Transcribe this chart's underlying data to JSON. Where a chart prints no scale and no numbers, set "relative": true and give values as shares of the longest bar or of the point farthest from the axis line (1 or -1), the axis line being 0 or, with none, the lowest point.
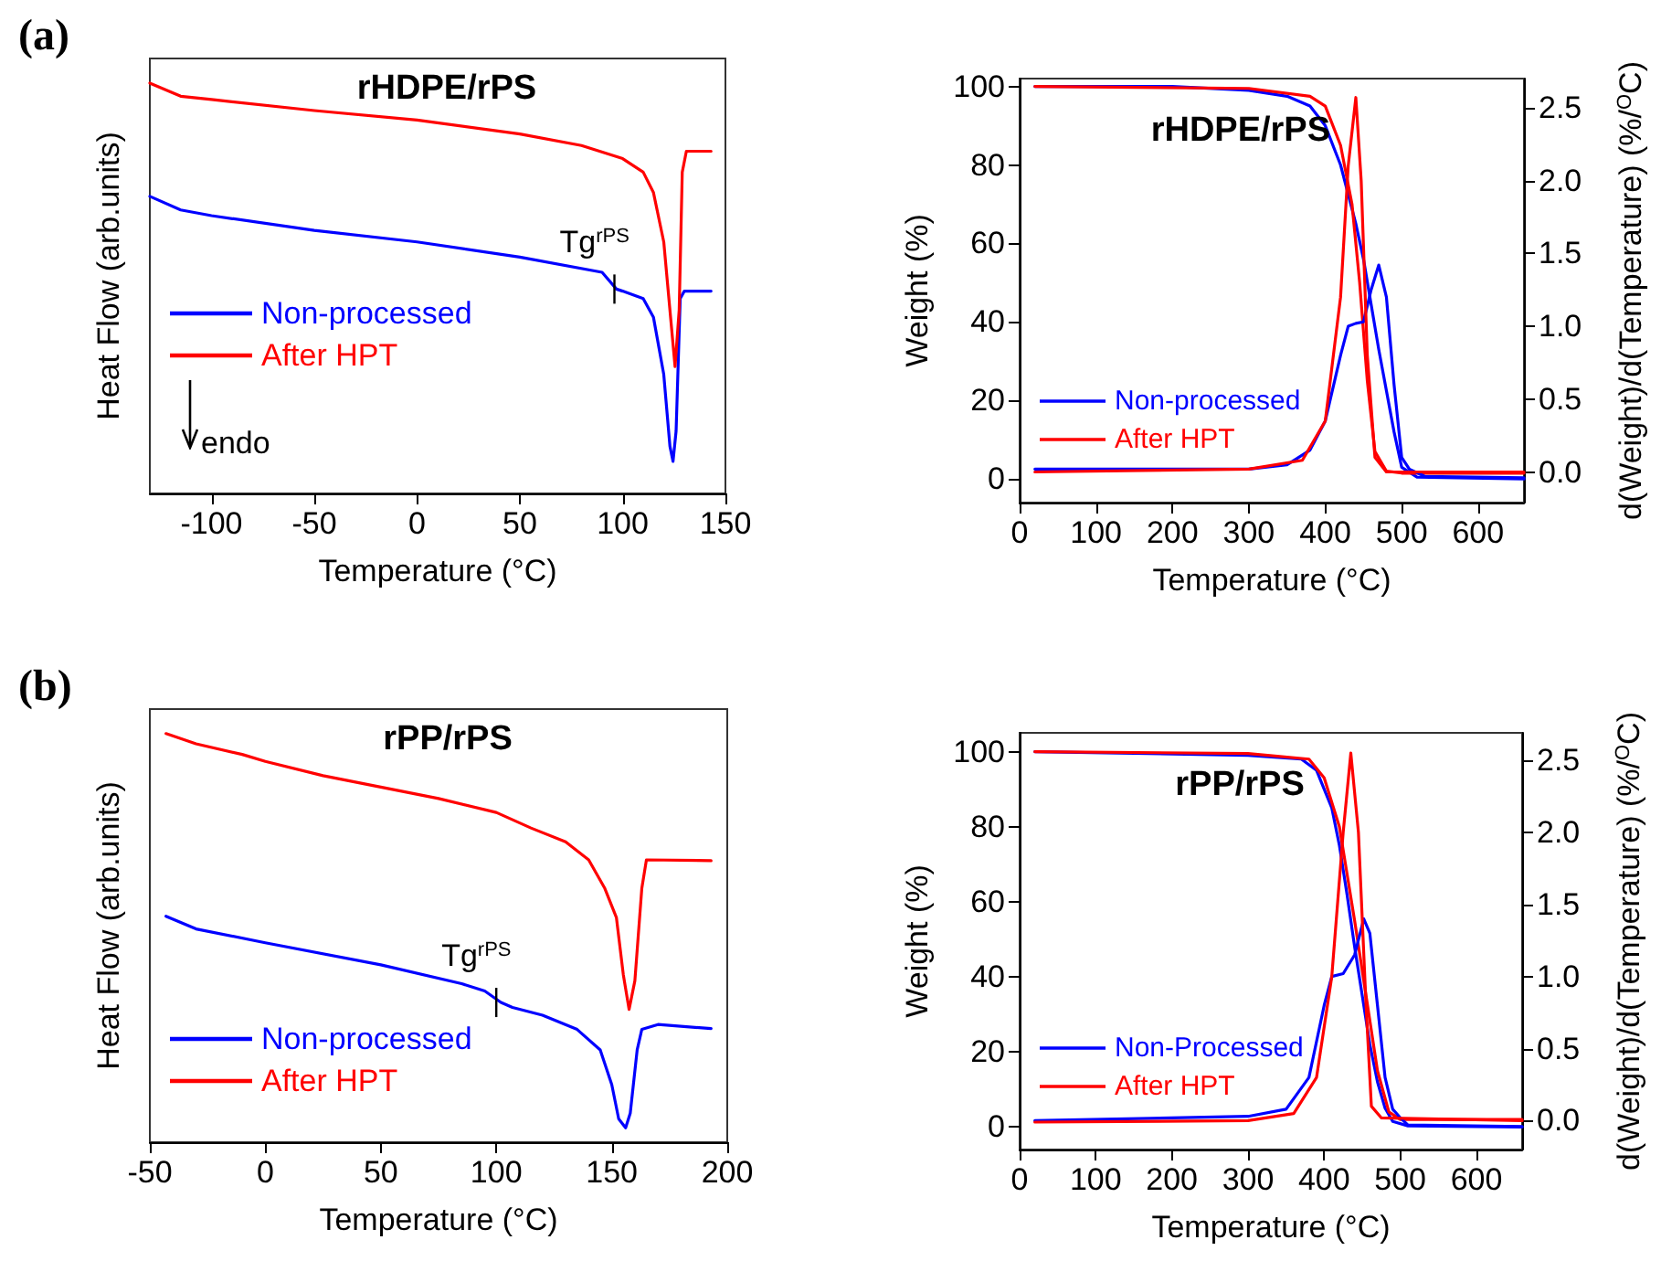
{
  "chart_data": [
    {
      "type": "line",
      "title": "rHDPE/rPS",
      "xlabel": "Temperature (°C)",
      "ylabel": "Heat Flow (arb.units)",
      "relative": true,
      "tick_labels": "x",
      "marker": "none",
      "legend": "bottom left",
      "xlim": [
        -130,
        150
      ],
      "xticks": [
        -100,
        -50,
        0,
        50,
        100,
        150
      ],
      "annotations": [
        "(a)",
        "endo",
        {
          "text": "Tg$^{rPS}$",
          "x": 96,
          "y": 0.498
        }
      ],
      "series": [
        {
          "name": "Non-processed",
          "color": "#0000ff",
          "x": [
            -130,
            -115,
            -100,
            -50,
            0,
            50,
            90,
            97,
            100,
            110,
            115,
            120,
            123,
            124.5,
            126,
            128,
            130,
            143
          ],
          "values": [
            0.724,
            0.691,
            0.677,
            0.641,
            0.613,
            0.576,
            0.539,
            0.498,
            0.493,
            0.475,
            0.429,
            0.29,
            0.115,
            0.078,
            0.152,
            0.475,
            0.493,
            0.493
          ]
        },
        {
          "name": "After HPT",
          "color": "#ff0000",
          "x": [
            -130,
            -115,
            -100,
            -50,
            0,
            50,
            80,
            100,
            110,
            115,
            120,
            123,
            125.5,
            127.5,
            129,
            131,
            143
          ],
          "values": [
            1.0,
            0.968,
            0.96,
            0.933,
            0.91,
            0.876,
            0.848,
            0.816,
            0.783,
            0.733,
            0.613,
            0.447,
            0.309,
            0.447,
            0.783,
            0.834,
            0.834
          ]
        }
      ]
    },
    {
      "type": "line",
      "title": "rHDPE/rPS",
      "xlabel": "Temperature (°C)",
      "ylabel": "Weight (%)",
      "y2label": "d(Weight)/d(Temperature) (%/$^{O}$C)",
      "marker": "none",
      "legend": "bottom left",
      "xlim": [
        0,
        660
      ],
      "xticks": [
        0,
        100,
        200,
        300,
        400,
        500,
        600
      ],
      "ylim": [
        -6,
        102
      ],
      "yticks": [
        0,
        20,
        40,
        60,
        80,
        100
      ],
      "y2lim": [
        -0.21,
        2.7
      ],
      "y2ticks": [
        {
          "value": 0,
          "label": "0.0"
        },
        0.5,
        {
          "value": 1,
          "label": "1.0"
        },
        1.5,
        {
          "value": 2,
          "label": "2.0"
        },
        2.5
      ],
      "series": [
        {
          "name": "Non-processed",
          "color": "#0000ff",
          "x": [
            20,
            200,
            300,
            350,
            380,
            400,
            420,
            440,
            450,
            470,
            490,
            500,
            520,
            660
          ],
          "values": [
            100,
            100,
            99,
            97.5,
            95,
            90,
            80,
            65,
            56,
            33,
            12,
            3,
            0.5,
            0
          ]
        },
        {
          "name": "After HPT",
          "color": "#ff0000",
          "x": [
            20,
            300,
            380,
            400,
            420,
            435,
            445,
            455,
            465,
            480,
            500,
            660
          ],
          "values": [
            100,
            99.5,
            97.5,
            95,
            85,
            70,
            50,
            25,
            7,
            2,
            1.5,
            1.5
          ]
        },
        {
          "color": "#0000ff",
          "axis": "y2",
          "x": [
            20,
            300,
            350,
            380,
            400,
            420,
            430,
            440,
            450,
            460,
            470,
            480,
            490,
            500,
            510,
            530,
            660
          ],
          "values": [
            0.02,
            0.02,
            0.05,
            0.15,
            0.35,
            0.8,
            1.0,
            1.02,
            1.03,
            1.25,
            1.42,
            1.2,
            0.6,
            0.1,
            0.02,
            -0.03,
            -0.04
          ]
        },
        {
          "color": "#ff0000",
          "axis": "y2",
          "x": [
            20,
            300,
            370,
            400,
            420,
            430,
            440,
            447,
            455,
            465,
            480,
            660
          ],
          "values": [
            0,
            0.02,
            0.08,
            0.35,
            1.2,
            2.1,
            2.57,
            2.0,
            0.8,
            0.1,
            0,
            0
          ]
        }
      ]
    },
    {
      "type": "line",
      "title": "rPP/rPS",
      "xlabel": "Temperature (°C)",
      "ylabel": "Heat Flow (arb.units)",
      "relative": true,
      "tick_labels": "x",
      "marker": "none",
      "legend": "bottom left",
      "xlim": [
        -50,
        200
      ],
      "xticks": [
        -50,
        0,
        50,
        100,
        150,
        200
      ],
      "annotations": [
        "(b)",
        {
          "text": "Tg$^{rPS}$",
          "x": 100,
          "y": 0.342
        }
      ],
      "series": [
        {
          "name": "Non-processed",
          "color": "#0000ff",
          "x": [
            -43,
            -30,
            0,
            50,
            85,
            95,
            102,
            107,
            120,
            135,
            145,
            150,
            153,
            156,
            158,
            161,
            163,
            170,
            193
          ],
          "values": [
            0.553,
            0.522,
            0.488,
            0.434,
            0.388,
            0.37,
            0.342,
            0.33,
            0.311,
            0.276,
            0.226,
            0.141,
            0.057,
            0.035,
            0.071,
            0.226,
            0.276,
            0.288,
            0.278
          ]
        },
        {
          "name": "After HPT",
          "color": "#ff0000",
          "x": [
            -43,
            -30,
            -10,
            0,
            25,
            50,
            75,
            100,
            115,
            130,
            140,
            147,
            152,
            155,
            157.5,
            160,
            163,
            165,
            193
          ],
          "values": [
            1.0,
            0.975,
            0.949,
            0.932,
            0.897,
            0.869,
            0.841,
            0.807,
            0.769,
            0.735,
            0.691,
            0.621,
            0.55,
            0.41,
            0.325,
            0.395,
            0.621,
            0.691,
            0.689
          ]
        }
      ]
    },
    {
      "type": "line",
      "title": "rPP/rPS",
      "xlabel": "Temperature (°C)",
      "ylabel": "Weight (%)",
      "y2label": "d(Weight)/d(Temperature) (%/$^{O}$C)",
      "marker": "none",
      "legend": "bottom left",
      "xlim": [
        0,
        660
      ],
      "xticks": [
        0,
        100,
        200,
        300,
        400,
        500,
        600
      ],
      "ylim": [
        -6,
        105
      ],
      "yticks": [
        0,
        20,
        40,
        60,
        80,
        100
      ],
      "y2lim": [
        -0.2,
        2.69
      ],
      "y2ticks": [
        {
          "value": 0,
          "label": "0.0"
        },
        0.5,
        {
          "value": 1,
          "label": "1.0"
        },
        1.5,
        {
          "value": 2,
          "label": "2.0"
        },
        2.5
      ],
      "series": [
        {
          "name": "Non-Processed",
          "color": "#0000ff",
          "x": [
            20,
            300,
            370,
            390,
            410,
            420,
            430,
            440,
            450,
            460,
            470,
            480,
            490,
            510,
            660
          ],
          "values": [
            100,
            99,
            98,
            95,
            85,
            75,
            62,
            48,
            35,
            22,
            12,
            5,
            1.5,
            0.3,
            0
          ]
        },
        {
          "name": "After HPT",
          "color": "#ff0000",
          "x": [
            20,
            300,
            380,
            400,
            420,
            440,
            455,
            470,
            485,
            500,
            660
          ],
          "values": [
            100,
            99.5,
            98,
            93,
            80,
            55,
            35,
            15,
            4,
            2,
            2
          ]
        },
        {
          "color": "#0000ff",
          "axis": "y2",
          "x": [
            20,
            300,
            350,
            380,
            400,
            410,
            425,
            440,
            452,
            460,
            470,
            480,
            490,
            500,
            510,
            660
          ],
          "values": [
            0,
            0.03,
            0.08,
            0.3,
            0.8,
            1.0,
            1.02,
            1.15,
            1.4,
            1.3,
            0.8,
            0.3,
            0.08,
            0.02,
            -0.03,
            -0.04
          ]
        },
        {
          "color": "#ff0000",
          "axis": "y2",
          "x": [
            20,
            300,
            360,
            390,
            410,
            425,
            435,
            445,
            455,
            462,
            475,
            660
          ],
          "values": [
            -0.01,
            0,
            0.05,
            0.3,
            1.0,
            2.0,
            2.55,
            2.0,
            0.8,
            0.1,
            0.02,
            0
          ]
        }
      ]
    }
  ]
}
